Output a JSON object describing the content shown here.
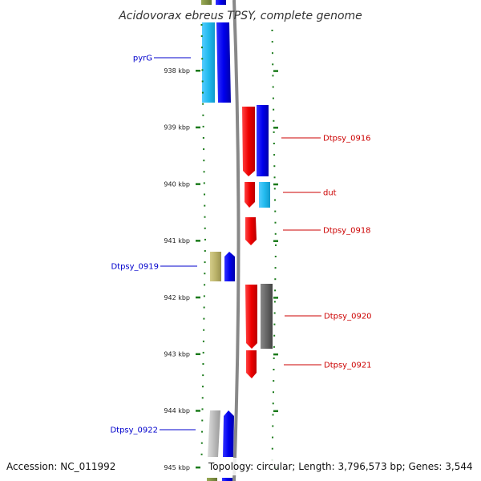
{
  "title": "Acidovorax ebreus TPSY, complete genome",
  "footer": {
    "accession": "Accession: NC_011992",
    "topology": "Topology: circular; Length: 3,796,573 bp; Genes: 3,544"
  },
  "colors": {
    "forward_label": "#0000cc",
    "reverse_label": "#cc0000",
    "tick": "#1a7a1a",
    "backbone": "#888888",
    "cds_forward": "#0000ee",
    "cds_reverse": "#ee0000",
    "cog_cyan": "#22bbee",
    "cog_olive": "#bbb36a",
    "cog_grey": "#666666",
    "cog_lightgrey": "#bbbbbb"
  },
  "axis": {
    "ticks": [
      "938 kbp",
      "939 kbp",
      "940 kbp",
      "941 kbp",
      "942 kbp",
      "943 kbp",
      "944 kbp",
      "945 kbp"
    ]
  },
  "genes": [
    {
      "label": "pyrG",
      "strand": "forward"
    },
    {
      "label": "Dtpsy_0916",
      "strand": "reverse"
    },
    {
      "label": "dut",
      "strand": "reverse"
    },
    {
      "label": "Dtpsy_0918",
      "strand": "reverse"
    },
    {
      "label": "Dtpsy_0919",
      "strand": "forward"
    },
    {
      "label": "Dtpsy_0920",
      "strand": "reverse"
    },
    {
      "label": "Dtpsy_0921",
      "strand": "reverse"
    },
    {
      "label": "Dtpsy_0922",
      "strand": "forward"
    }
  ]
}
